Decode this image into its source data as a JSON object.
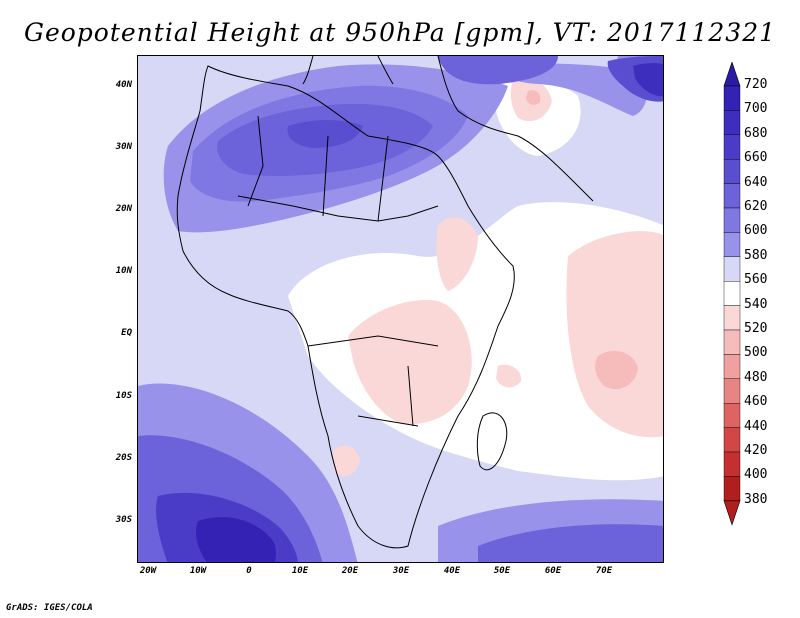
{
  "title": "Geopotential Height at 950hPa [gpm], VT: 2017112321",
  "credit": "GrADS: IGES/COLA",
  "map": {
    "projection": "latlon",
    "lon_range": [
      -25,
      80
    ],
    "lat_range": [
      -37,
      45
    ],
    "lat_ticks": [
      {
        "label": "40N"
      },
      {
        "label": "30N"
      },
      {
        "label": "20N"
      },
      {
        "label": "10N"
      },
      {
        "label": "EQ"
      },
      {
        "label": "10S"
      },
      {
        "label": "20S"
      },
      {
        "label": "30S"
      }
    ],
    "lon_ticks": [
      {
        "label": "20W"
      },
      {
        "label": "10W"
      },
      {
        "label": "0"
      },
      {
        "label": "10E"
      },
      {
        "label": "20E"
      },
      {
        "label": "30E"
      },
      {
        "label": "40E"
      },
      {
        "label": "50E"
      },
      {
        "label": "60E"
      },
      {
        "label": "70E"
      }
    ]
  },
  "colorbar": {
    "levels": [
      {
        "label": "720",
        "color": "#2a1aa8"
      },
      {
        "label": "700",
        "color": "#3322b4"
      },
      {
        "label": "680",
        "color": "#3d2ebe"
      },
      {
        "label": "660",
        "color": "#4a3cc6"
      },
      {
        "label": "640",
        "color": "#5a4ed0"
      },
      {
        "label": "620",
        "color": "#6c62da"
      },
      {
        "label": "600",
        "color": "#8078e2"
      },
      {
        "label": "580",
        "color": "#9892ea"
      },
      {
        "label": "560",
        "color": "#d6d8f6"
      },
      {
        "label": "540",
        "color": "#ffffff"
      },
      {
        "label": "520",
        "color": "#fbd8d8"
      },
      {
        "label": "500",
        "color": "#f6bcbc"
      },
      {
        "label": "480",
        "color": "#f0a0a0"
      },
      {
        "label": "460",
        "color": "#e88484"
      },
      {
        "label": "440",
        "color": "#de6464"
      },
      {
        "label": "420",
        "color": "#d24646"
      },
      {
        "label": "400",
        "color": "#c43030"
      },
      {
        "label": "380",
        "color": "#b01e1e"
      }
    ]
  },
  "colors": {
    "land_outline": "#000000",
    "frame": "#000000"
  }
}
